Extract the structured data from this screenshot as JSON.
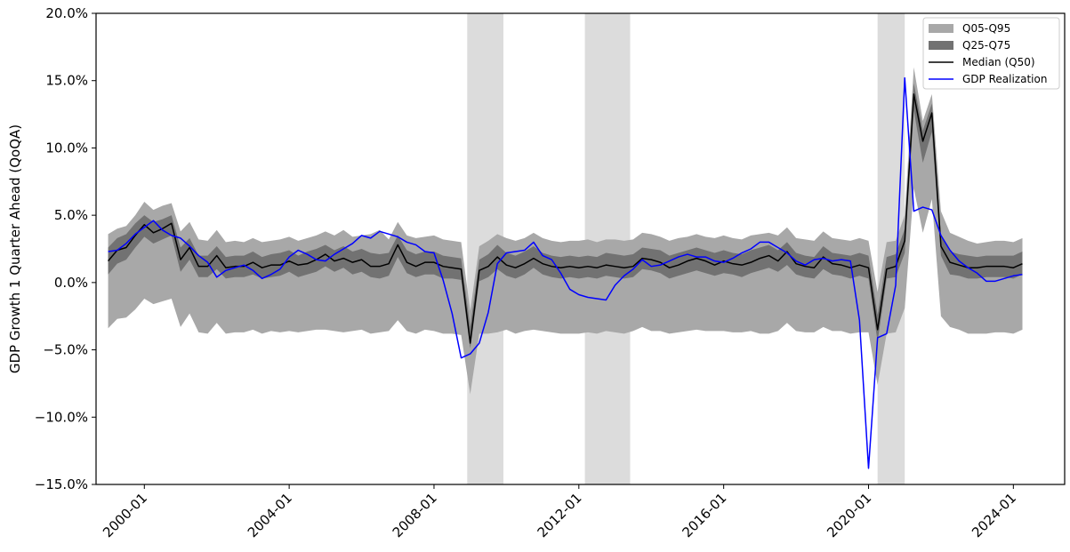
{
  "chart_data": {
    "type": "line",
    "title": "",
    "xlabel": "",
    "ylabel": "GDP Growth 1 Quarter Ahead (QoQA)",
    "x_range": [
      "1998-09",
      "2025-06"
    ],
    "ylim": [
      -15,
      20
    ],
    "y_ticks": [
      -15,
      -10,
      -5,
      0,
      5,
      10,
      15,
      20
    ],
    "y_tick_format": "percent_1dp",
    "x_ticks": [
      "2000-01",
      "2004-01",
      "2008-01",
      "2012-01",
      "2016-01",
      "2020-01",
      "2024-01"
    ],
    "grid": false,
    "legend_position": "top-right",
    "recession_shading": [
      {
        "start": "2008-12",
        "end": "2009-12"
      },
      {
        "start": "2012-03",
        "end": "2013-06"
      },
      {
        "start": "2020-04",
        "end": "2021-01"
      }
    ],
    "x_dates": [
      "1999-01",
      "1999-04",
      "1999-07",
      "1999-10",
      "2000-01",
      "2000-04",
      "2000-07",
      "2000-10",
      "2001-01",
      "2001-04",
      "2001-07",
      "2001-10",
      "2002-01",
      "2002-04",
      "2002-07",
      "2002-10",
      "2003-01",
      "2003-04",
      "2003-07",
      "2003-10",
      "2004-01",
      "2004-04",
      "2004-07",
      "2004-10",
      "2005-01",
      "2005-04",
      "2005-07",
      "2005-10",
      "2006-01",
      "2006-04",
      "2006-07",
      "2006-10",
      "2007-01",
      "2007-04",
      "2007-07",
      "2007-10",
      "2008-01",
      "2008-04",
      "2008-07",
      "2008-10",
      "2009-01",
      "2009-04",
      "2009-07",
      "2009-10",
      "2010-01",
      "2010-04",
      "2010-07",
      "2010-10",
      "2011-01",
      "2011-04",
      "2011-07",
      "2011-10",
      "2012-01",
      "2012-04",
      "2012-07",
      "2012-10",
      "2013-01",
      "2013-04",
      "2013-07",
      "2013-10",
      "2014-01",
      "2014-04",
      "2014-07",
      "2014-10",
      "2015-01",
      "2015-04",
      "2015-07",
      "2015-10",
      "2016-01",
      "2016-04",
      "2016-07",
      "2016-10",
      "2017-01",
      "2017-04",
      "2017-07",
      "2017-10",
      "2018-01",
      "2018-04",
      "2018-07",
      "2018-10",
      "2019-01",
      "2019-04",
      "2019-07",
      "2019-10",
      "2020-01",
      "2020-04",
      "2020-07",
      "2020-10",
      "2021-01",
      "2021-04",
      "2021-07",
      "2021-10",
      "2022-01",
      "2022-04",
      "2022-07",
      "2022-10",
      "2023-01",
      "2023-04",
      "2023-07",
      "2023-10",
      "2024-01",
      "2024-04"
    ],
    "series": [
      {
        "name": "Q05-Q95",
        "kind": "band",
        "color": "#a8a8a8",
        "low": [
          -3.4,
          -2.7,
          -2.6,
          -2.0,
          -1.2,
          -1.6,
          -1.4,
          -1.2,
          -3.3,
          -2.3,
          -3.7,
          -3.8,
          -3.0,
          -3.8,
          -3.7,
          -3.7,
          -3.5,
          -3.8,
          -3.6,
          -3.7,
          -3.6,
          -3.7,
          -3.6,
          -3.5,
          -3.5,
          -3.6,
          -3.7,
          -3.6,
          -3.5,
          -3.8,
          -3.7,
          -3.6,
          -2.8,
          -3.6,
          -3.8,
          -3.5,
          -3.6,
          -3.8,
          -3.8,
          -3.9,
          -8.3,
          -3.8,
          -3.8,
          -3.7,
          -3.5,
          -3.8,
          -3.6,
          -3.5,
          -3.6,
          -3.7,
          -3.8,
          -3.8,
          -3.8,
          -3.7,
          -3.8,
          -3.6,
          -3.7,
          -3.8,
          -3.6,
          -3.3,
          -3.6,
          -3.6,
          -3.8,
          -3.7,
          -3.6,
          -3.5,
          -3.6,
          -3.6,
          -3.6,
          -3.7,
          -3.7,
          -3.6,
          -3.8,
          -3.8,
          -3.6,
          -3.0,
          -3.6,
          -3.7,
          -3.7,
          -3.3,
          -3.6,
          -3.6,
          -3.8,
          -3.7,
          -3.7,
          -7.6,
          -3.8,
          -3.7,
          -1.9,
          7.0,
          3.7,
          6.2,
          -2.5,
          -3.3,
          -3.5,
          -3.8,
          -3.8,
          -3.8,
          -3.7,
          -3.7,
          -3.8,
          -3.5
        ],
        "high": [
          3.6,
          4.0,
          4.2,
          5.0,
          6.0,
          5.4,
          5.7,
          5.9,
          3.8,
          4.5,
          3.2,
          3.1,
          3.9,
          3.0,
          3.1,
          3.0,
          3.3,
          3.0,
          3.1,
          3.2,
          3.4,
          3.1,
          3.3,
          3.5,
          3.8,
          3.5,
          3.9,
          3.4,
          3.5,
          3.6,
          3.9,
          3.2,
          4.5,
          3.5,
          3.3,
          3.4,
          3.5,
          3.2,
          3.1,
          3.0,
          -2.1,
          2.7,
          3.1,
          3.6,
          3.3,
          3.1,
          3.3,
          3.7,
          3.3,
          3.1,
          3.0,
          3.1,
          3.1,
          3.2,
          3.0,
          3.2,
          3.2,
          3.1,
          3.2,
          3.7,
          3.6,
          3.4,
          3.1,
          3.3,
          3.4,
          3.6,
          3.4,
          3.3,
          3.5,
          3.3,
          3.2,
          3.5,
          3.6,
          3.7,
          3.5,
          4.1,
          3.3,
          3.2,
          3.1,
          3.8,
          3.3,
          3.2,
          3.1,
          3.3,
          3.1,
          -0.7,
          3.0,
          3.1,
          5.0,
          16.0,
          12.0,
          14.0,
          5.3,
          3.7,
          3.4,
          3.1,
          2.9,
          3.0,
          3.1,
          3.1,
          3.0,
          3.3
        ]
      },
      {
        "name": "Q25-Q75",
        "kind": "band",
        "color": "#727272",
        "low": [
          0.6,
          1.4,
          1.7,
          2.6,
          3.4,
          2.9,
          3.2,
          3.5,
          0.8,
          1.7,
          0.4,
          0.4,
          1.0,
          0.3,
          0.4,
          0.4,
          0.6,
          0.3,
          0.4,
          0.5,
          0.8,
          0.4,
          0.6,
          0.8,
          1.2,
          0.8,
          1.1,
          0.6,
          0.8,
          0.4,
          0.3,
          0.5,
          1.9,
          0.7,
          0.4,
          0.6,
          0.6,
          0.3,
          0.3,
          0.2,
          -4.9,
          0.1,
          0.4,
          1.0,
          0.5,
          0.3,
          0.6,
          1.1,
          0.6,
          0.4,
          0.3,
          0.4,
          0.3,
          0.4,
          0.3,
          0.5,
          0.4,
          0.3,
          0.4,
          1.0,
          0.9,
          0.7,
          0.3,
          0.5,
          0.7,
          0.9,
          0.7,
          0.5,
          0.7,
          0.6,
          0.4,
          0.7,
          0.9,
          1.1,
          0.8,
          1.3,
          0.6,
          0.4,
          0.3,
          1.0,
          0.6,
          0.5,
          0.3,
          0.5,
          0.3,
          -4.4,
          0.3,
          0.4,
          2.2,
          12.8,
          8.9,
          11.2,
          2.0,
          0.6,
          0.5,
          0.3,
          0.3,
          0.4,
          0.4,
          0.4,
          0.3,
          0.6
        ],
        "high": [
          2.6,
          3.3,
          3.6,
          4.4,
          5.0,
          4.5,
          4.7,
          5.0,
          2.6,
          3.3,
          2.0,
          2.0,
          2.7,
          1.9,
          2.0,
          2.0,
          2.3,
          1.9,
          2.1,
          2.2,
          2.4,
          2.0,
          2.3,
          2.5,
          2.8,
          2.4,
          2.7,
          2.3,
          2.5,
          2.2,
          2.1,
          2.2,
          3.5,
          2.4,
          2.1,
          2.3,
          2.3,
          2.0,
          1.9,
          1.8,
          -3.3,
          1.7,
          2.1,
          2.8,
          2.2,
          2.0,
          2.3,
          2.7,
          2.2,
          2.0,
          1.9,
          2.0,
          1.9,
          2.0,
          1.9,
          2.2,
          2.1,
          2.0,
          2.1,
          2.6,
          2.5,
          2.4,
          2.0,
          2.2,
          2.4,
          2.6,
          2.4,
          2.2,
          2.4,
          2.2,
          2.1,
          2.4,
          2.6,
          2.8,
          2.4,
          3.0,
          2.2,
          2.0,
          1.9,
          2.7,
          2.2,
          2.1,
          2.0,
          2.2,
          2.0,
          -2.4,
          1.9,
          2.1,
          4.0,
          14.8,
          11.3,
          13.3,
          3.5,
          2.3,
          2.1,
          2.0,
          1.9,
          2.0,
          2.0,
          2.0,
          2.0,
          2.3
        ]
      },
      {
        "name": "Median (Q50)",
        "kind": "line",
        "color": "#000000",
        "values": [
          1.6,
          2.4,
          2.6,
          3.5,
          4.3,
          3.7,
          4.0,
          4.4,
          1.7,
          2.6,
          1.2,
          1.2,
          2.0,
          1.1,
          1.2,
          1.2,
          1.5,
          1.1,
          1.3,
          1.3,
          1.6,
          1.3,
          1.4,
          1.7,
          2.1,
          1.6,
          1.8,
          1.5,
          1.7,
          1.2,
          1.2,
          1.4,
          2.8,
          1.5,
          1.2,
          1.5,
          1.5,
          1.2,
          1.1,
          1.0,
          -4.5,
          0.9,
          1.2,
          1.9,
          1.3,
          1.1,
          1.4,
          1.8,
          1.4,
          1.2,
          1.1,
          1.2,
          1.1,
          1.2,
          1.1,
          1.3,
          1.2,
          1.1,
          1.2,
          1.8,
          1.7,
          1.5,
          1.1,
          1.3,
          1.6,
          1.8,
          1.6,
          1.3,
          1.6,
          1.4,
          1.3,
          1.5,
          1.8,
          2.0,
          1.6,
          2.3,
          1.4,
          1.2,
          1.1,
          1.9,
          1.4,
          1.3,
          1.1,
          1.3,
          1.1,
          -3.5,
          1.0,
          1.2,
          3.1,
          14.0,
          10.5,
          12.6,
          2.7,
          1.5,
          1.3,
          1.1,
          1.1,
          1.2,
          1.2,
          1.2,
          1.1,
          1.4
        ]
      },
      {
        "name": "GDP Realization",
        "kind": "line",
        "color": "#0000ff",
        "values": [
          2.3,
          2.4,
          2.9,
          3.6,
          4.1,
          4.6,
          3.9,
          3.5,
          3.3,
          2.7,
          2.0,
          1.5,
          0.4,
          0.9,
          1.1,
          1.3,
          0.9,
          0.3,
          0.6,
          1.0,
          1.9,
          2.4,
          2.1,
          1.7,
          1.6,
          2.1,
          2.5,
          2.9,
          3.5,
          3.3,
          3.8,
          3.6,
          3.4,
          3.0,
          2.8,
          2.3,
          2.2,
          0.2,
          -2.3,
          -5.6,
          -5.3,
          -4.5,
          -2.2,
          1.4,
          2.2,
          2.3,
          2.4,
          3.0,
          2.0,
          1.7,
          0.7,
          -0.5,
          -0.9,
          -1.1,
          -1.2,
          -1.3,
          -0.2,
          0.5,
          1.0,
          1.7,
          1.2,
          1.3,
          1.6,
          1.9,
          2.1,
          1.9,
          1.9,
          1.6,
          1.5,
          1.8,
          2.2,
          2.5,
          3.0,
          3.0,
          2.6,
          2.2,
          1.6,
          1.3,
          1.7,
          1.8,
          1.6,
          1.7,
          1.6,
          -2.8,
          -13.8,
          -4.1,
          -3.8,
          -0.2,
          15.2,
          5.3,
          5.6,
          5.4,
          3.5,
          2.4,
          1.6,
          1.1,
          0.7,
          0.1,
          0.1,
          0.3,
          0.5,
          0.6
        ]
      }
    ]
  }
}
